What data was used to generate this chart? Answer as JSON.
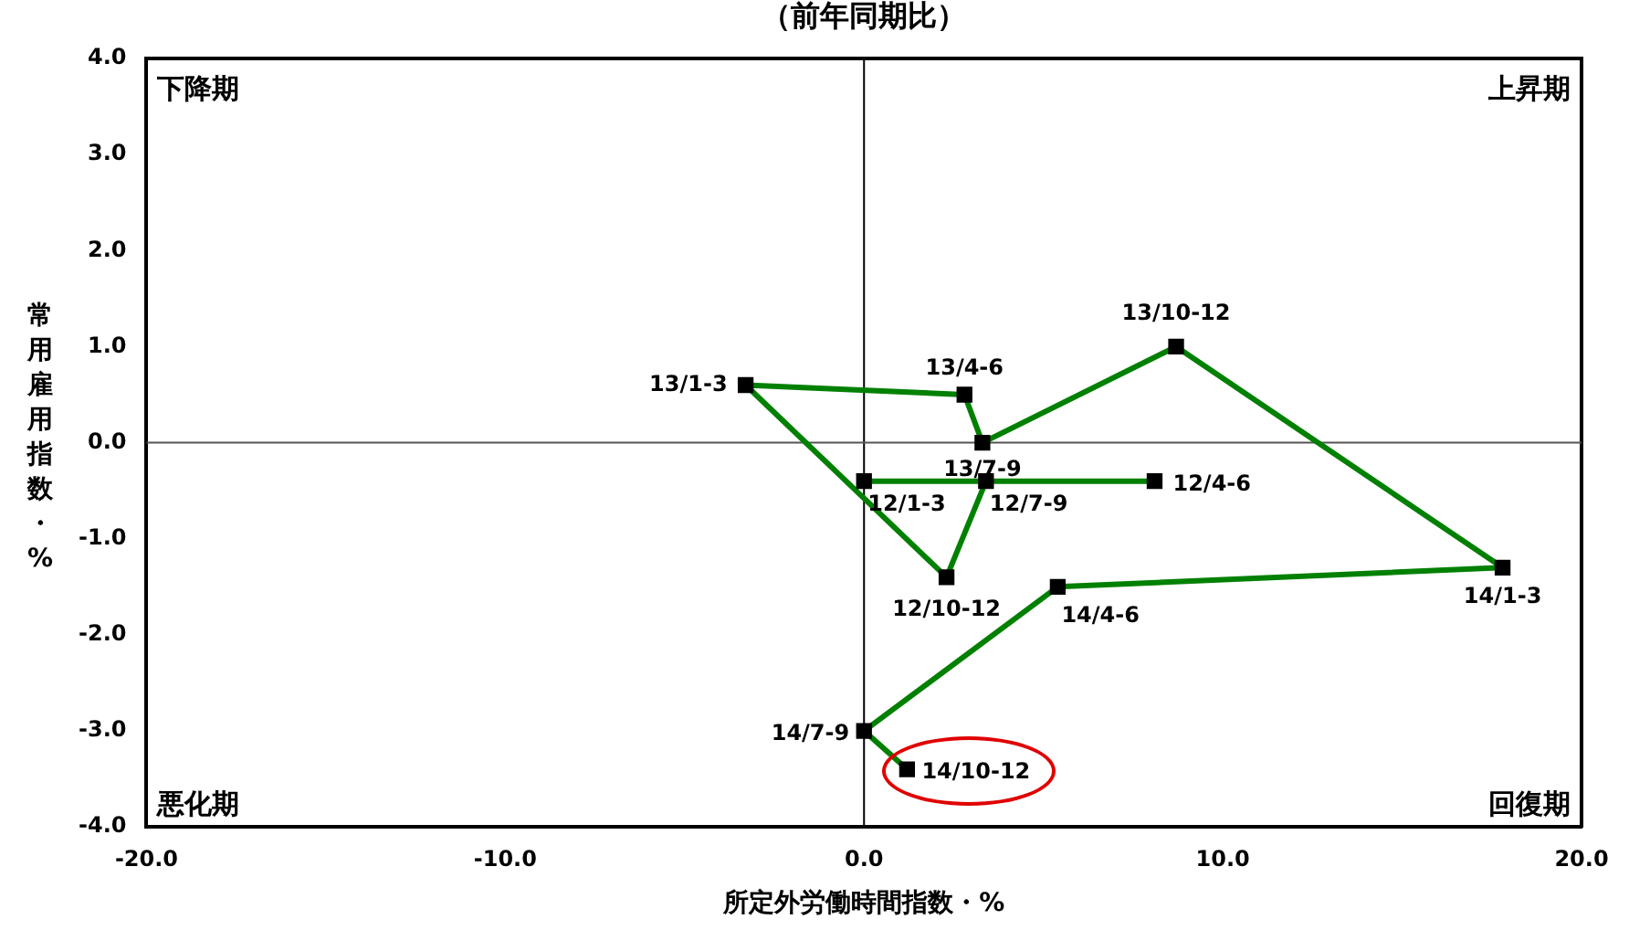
{
  "chart_data": {
    "type": "line",
    "title": "（前年同期比）",
    "xlabel": "所定外労働時間指数・%",
    "ylabel": "常用雇用指数・%",
    "xlim": [
      -20,
      20
    ],
    "xticks": [
      {
        "value": -20,
        "label": "-20.0"
      },
      {
        "value": -10,
        "label": "-10.0"
      },
      {
        "value": 0,
        "label": "0.0"
      },
      {
        "value": 10,
        "label": "10.0"
      },
      {
        "value": 20,
        "label": "20.0"
      }
    ],
    "ylim": [
      -4,
      4
    ],
    "yticks": [
      {
        "value": -4,
        "label": "-4.0"
      },
      {
        "value": -3,
        "label": "-3.0"
      },
      {
        "value": -2,
        "label": "-2.0"
      },
      {
        "value": -1,
        "label": "-1.0"
      },
      {
        "value": 0,
        "label": "0.0"
      },
      {
        "value": 1,
        "label": "1.0"
      },
      {
        "value": 2,
        "label": "2.0"
      },
      {
        "value": 3,
        "label": "3.0"
      },
      {
        "value": 4,
        "label": "4.0"
      }
    ],
    "x": [
      0,
      8.1,
      3.4,
      2.3,
      -3.3,
      2.8,
      3.3,
      8.7,
      17.8,
      5.4,
      0,
      1.2
    ],
    "series": [
      {
        "color": "#008000",
        "values": [
          -0.4,
          -0.4,
          -0.4,
          -1.4,
          0.6,
          0.5,
          0.0,
          1.0,
          -1.3,
          -1.5,
          -3.0,
          -3.4
        ]
      }
    ],
    "marker": "square",
    "line_style": "solid",
    "grid": false,
    "legend": false,
    "ref_lines": [
      {
        "axis": "x",
        "value": 0,
        "color": "#000000"
      },
      {
        "axis": "y",
        "value": 0,
        "color": "#555555"
      }
    ],
    "annotations": [
      "下降期",
      "上昇期",
      "悪化期",
      "回復期",
      {
        "text": "12/1-3",
        "x": 0,
        "y": -0.4
      },
      {
        "text": "12/4-6",
        "x": 8.1,
        "y": -0.4
      },
      {
        "text": "12/7-9",
        "x": 3.4,
        "y": -0.4
      },
      {
        "text": "12/10-12",
        "x": 2.3,
        "y": -1.4
      },
      {
        "text": "13/1-3",
        "x": -3.3,
        "y": 0.6
      },
      {
        "text": "13/4-6",
        "x": 2.8,
        "y": 0.5
      },
      {
        "text": "13/7-9",
        "x": 3.3,
        "y": 0.0
      },
      {
        "text": "13/10-12",
        "x": 8.7,
        "y": 1.0
      },
      {
        "text": "14/1-3",
        "x": 17.8,
        "y": -1.3
      },
      {
        "text": "14/4-6",
        "x": 5.4,
        "y": -1.5
      },
      {
        "text": "14/7-9",
        "x": 0,
        "y": -3.0
      },
      {
        "text": "14/10-12",
        "x": 1.2,
        "y": -3.4
      }
    ]
  }
}
